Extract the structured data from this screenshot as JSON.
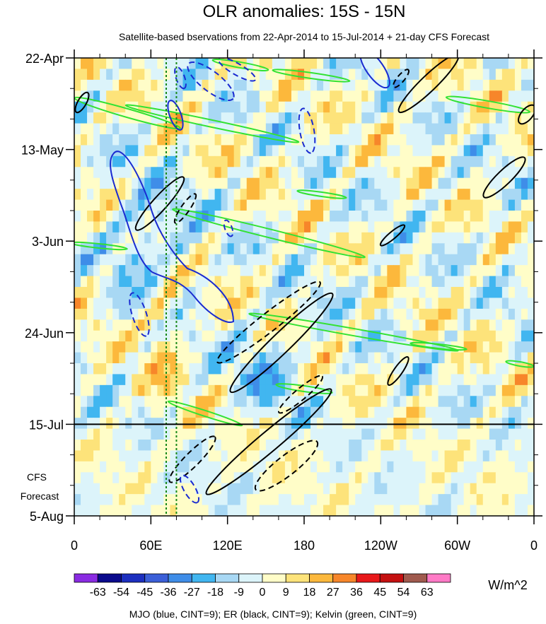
{
  "chart_data": {
    "type": "heatmap",
    "title": "OLR anomalies: 15S - 15N",
    "subtitle": "Satellite-based bservations from 22-Apr-2014 to 15-Jul-2014 + 21-day CFS Forecast",
    "x_ticks": [
      {
        "lon": 0,
        "label": "0"
      },
      {
        "lon": 60,
        "label": "60E"
      },
      {
        "lon": 120,
        "label": "120E"
      },
      {
        "lon": 180,
        "label": "180"
      },
      {
        "lon": 240,
        "label": "120W"
      },
      {
        "lon": 300,
        "label": "60W"
      },
      {
        "lon": 360,
        "label": "0"
      }
    ],
    "xlim": [
      0,
      360
    ],
    "ylim": [
      0,
      105
    ],
    "y_ticks": [
      {
        "day": 0,
        "label": "22-Apr"
      },
      {
        "day": 21,
        "label": "13-May"
      },
      {
        "day": 42,
        "label": "3-Jun"
      },
      {
        "day": 63,
        "label": "24-Jun"
      },
      {
        "day": 84,
        "label": "15-Jul"
      },
      {
        "day": 105,
        "label": "5-Aug"
      }
    ],
    "observation_end": {
      "day": 84,
      "label": "15-Jul"
    },
    "forecast_label_lines": [
      "CFS",
      "Forecast"
    ],
    "reference_longitudes": [
      72,
      80
    ],
    "colorbar": {
      "unit": "W/m^2",
      "levels": [
        "-63",
        "-54",
        "-45",
        "-36",
        "-27",
        "-18",
        "-9",
        "0",
        "9",
        "18",
        "27",
        "36",
        "45",
        "54",
        "63"
      ],
      "colors": [
        "#8a2be2",
        "#0a0a8c",
        "#1c2fbf",
        "#3b5fd8",
        "#3f8de8",
        "#41b6f0",
        "#a8d8f4",
        "#dcf4fa",
        "#fffdc8",
        "#fde37a",
        "#fcb83c",
        "#f7862a",
        "#e8181a",
        "#c41010",
        "#a05a4e",
        "#ff7ac6"
      ]
    },
    "contours": [
      {
        "name": "MJO",
        "color": "#1a2bd1",
        "cint": 9
      },
      {
        "name": "ER",
        "color": "#000000",
        "cint": 9
      },
      {
        "name": "Kelvin",
        "color": "#33e233",
        "cint": 9
      }
    ],
    "footer": "MJO (blue, CINT=9); ER (black, CINT=9); Kelvin (green, CINT=9)"
  }
}
